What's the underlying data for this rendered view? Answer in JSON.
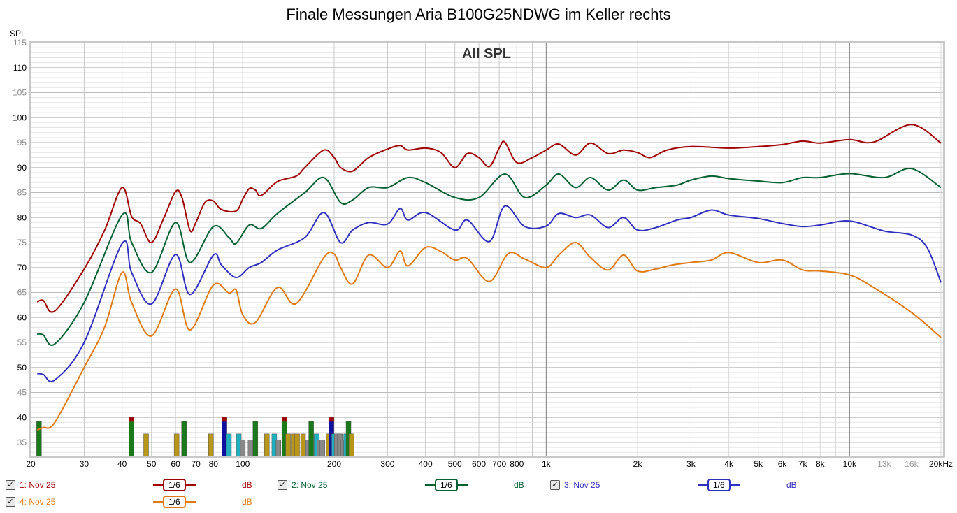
{
  "chart_data": {
    "type": "line",
    "title": "Finale Messungen Aria B100G25NDWG im Keller rechts",
    "subtitle": "All SPL",
    "ylabel": "SPL",
    "xlabel": "",
    "xscale": "log",
    "xlim": [
      20,
      20500
    ],
    "ylim": [
      32,
      115
    ],
    "yticks": [
      35,
      40,
      45,
      50,
      55,
      60,
      65,
      70,
      75,
      80,
      85,
      90,
      95,
      100,
      105,
      110,
      115
    ],
    "xticks": [
      {
        "v": 20,
        "l": "20"
      },
      {
        "v": 30,
        "l": "30"
      },
      {
        "v": 40,
        "l": "40"
      },
      {
        "v": 50,
        "l": "50"
      },
      {
        "v": 60,
        "l": "60"
      },
      {
        "v": 70,
        "l": "70"
      },
      {
        "v": 80,
        "l": "80"
      },
      {
        "v": 100,
        "l": "100"
      },
      {
        "v": 200,
        "l": "200"
      },
      {
        "v": 300,
        "l": "300"
      },
      {
        "v": 400,
        "l": "400"
      },
      {
        "v": 500,
        "l": "500"
      },
      {
        "v": 600,
        "l": "600"
      },
      {
        "v": 700,
        "l": "700"
      },
      {
        "v": 800,
        "l": "800"
      },
      {
        "v": 1000,
        "l": "1k"
      },
      {
        "v": 2000,
        "l": "2k"
      },
      {
        "v": 3000,
        "l": "3k"
      },
      {
        "v": 4000,
        "l": "4k"
      },
      {
        "v": 5000,
        "l": "5k"
      },
      {
        "v": 6000,
        "l": "6k"
      },
      {
        "v": 7000,
        "l": "7k"
      },
      {
        "v": 8000,
        "l": "8k"
      },
      {
        "v": 10000,
        "l": "10k"
      },
      {
        "v": 13000,
        "l": "13k",
        "minor": true
      },
      {
        "v": 16000,
        "l": "16k",
        "minor": true
      },
      {
        "v": 20000,
        "l": "20kHz"
      }
    ],
    "grid": true,
    "series": [
      {
        "name": "1: Nov 25",
        "color": "#a00000",
        "smoothing": "1/6",
        "unit": "dB",
        "x": [
          21,
          22,
          24,
          30,
          35,
          40,
          43,
          46,
          50,
          55,
          60,
          63,
          67,
          70,
          75,
          80,
          85,
          95,
          100,
          105,
          110,
          115,
          130,
          150,
          160,
          185,
          200,
          210,
          230,
          260,
          300,
          330,
          350,
          400,
          450,
          500,
          550,
          600,
          650,
          700,
          730,
          800,
          900,
          1000,
          1100,
          1250,
          1400,
          1600,
          1800,
          2000,
          2200,
          2500,
          3000,
          4000,
          5000,
          6000,
          7000,
          8000,
          10000,
          12000,
          16000,
          20000
        ],
        "y": [
          63.1,
          63.4,
          61.3,
          69.7,
          77.4,
          86,
          80.2,
          78.8,
          75,
          80,
          85.2,
          84,
          77.4,
          79,
          83,
          83.3,
          81.6,
          81.3,
          83.7,
          85.8,
          85.5,
          84.4,
          87.2,
          88.3,
          90,
          93.5,
          92,
          90,
          89.3,
          92,
          93.7,
          94.4,
          93.5,
          93.9,
          93,
          90,
          92.8,
          92,
          90.2,
          93.9,
          95.1,
          91,
          92,
          93.5,
          94.7,
          92.5,
          94.9,
          92.8,
          93.5,
          93,
          92,
          93.5,
          94.2,
          93.9,
          94.2,
          94.6,
          95.3,
          94.9,
          95.6,
          95.1,
          98.6,
          94.9
        ]
      },
      {
        "name": "2: Nov 25",
        "color": "#006030",
        "smoothing": "1/6",
        "unit": "dB",
        "x": [
          21,
          22,
          24,
          30,
          40,
          43,
          50,
          60,
          67,
          80,
          90,
          95,
          105,
          115,
          130,
          160,
          185,
          210,
          230,
          260,
          300,
          350,
          400,
          500,
          600,
          730,
          850,
          1000,
          1100,
          1250,
          1400,
          1600,
          1800,
          2000,
          2300,
          2700,
          3000,
          3500,
          4000,
          5000,
          6000,
          7000,
          8000,
          10000,
          13000,
          16000,
          20000
        ],
        "y": [
          56.7,
          56.5,
          54.7,
          63,
          80.5,
          75,
          69,
          79,
          71,
          78.2,
          76,
          74.8,
          78.5,
          77.8,
          80.8,
          85,
          88,
          83,
          83.5,
          86,
          86,
          88,
          87,
          84,
          84,
          88.7,
          84,
          86.5,
          88.7,
          86,
          88,
          85.5,
          87.5,
          85.5,
          86,
          86.5,
          87.5,
          88.3,
          87.8,
          87.3,
          87,
          88,
          88,
          88.8,
          88,
          89.8,
          86
        ]
      },
      {
        "name": "3: Nov 25",
        "color": "#3030c0",
        "smoothing": "1/6",
        "unit": "dB",
        "x": [
          21,
          22,
          24,
          30,
          40,
          43,
          50,
          60,
          67,
          80,
          85,
          95,
          105,
          115,
          130,
          160,
          185,
          210,
          230,
          260,
          300,
          330,
          350,
          400,
          500,
          550,
          650,
          730,
          850,
          1000,
          1100,
          1250,
          1400,
          1600,
          1800,
          2000,
          2300,
          2700,
          3000,
          3500,
          4000,
          5000,
          6000,
          7000,
          8000,
          10000,
          13000,
          16000,
          18000,
          20000
        ],
        "y": [
          48.8,
          48.6,
          47.5,
          55,
          74.8,
          69,
          62.7,
          72.6,
          64.6,
          72.5,
          70.5,
          68,
          70,
          71,
          73.5,
          76,
          81,
          75,
          77.5,
          79,
          78.7,
          81.8,
          79.5,
          81,
          77.5,
          79.5,
          75.2,
          82.3,
          78.2,
          78.3,
          80.8,
          80,
          80.5,
          78,
          80,
          77.5,
          78,
          79.5,
          80,
          81.5,
          80.5,
          79.8,
          78.8,
          78.2,
          78.5,
          79.3,
          77.3,
          76.5,
          74,
          67
        ]
      },
      {
        "name": "4: Nov 25",
        "color": "#e07a10",
        "smoothing": "1/6",
        "unit": "dB",
        "x": [
          21,
          22,
          24,
          30,
          35,
          40,
          43,
          50,
          60,
          67,
          80,
          90,
          95,
          100,
          110,
          130,
          150,
          185,
          200,
          210,
          230,
          260,
          300,
          330,
          350,
          400,
          450,
          500,
          550,
          650,
          750,
          850,
          1000,
          1100,
          1250,
          1400,
          1600,
          1800,
          2000,
          2300,
          2600,
          3000,
          3500,
          4000,
          5000,
          6000,
          7000,
          8000,
          10000,
          12000,
          16000,
          20000
        ],
        "y": [
          37.5,
          38,
          39,
          50,
          58,
          69,
          63,
          56.3,
          65.7,
          57.5,
          66.5,
          64.9,
          65.5,
          60.5,
          59,
          66,
          62.8,
          72,
          72.7,
          70,
          66.7,
          72.5,
          70,
          73.3,
          70.3,
          74,
          73.2,
          71.5,
          71.8,
          67.2,
          72.8,
          71.7,
          70,
          72.5,
          75,
          72,
          69.5,
          72.5,
          69.3,
          69.7,
          70.5,
          71,
          71.5,
          73,
          71,
          71.5,
          69.5,
          69.3,
          68.5,
          66,
          61,
          56
        ]
      }
    ],
    "bars": [
      {
        "f": 21.3,
        "top": 39.2,
        "c": "#1a7a1a"
      },
      {
        "f": 43,
        "top": 40,
        "c": "#1a7a1a",
        "cap": "#a00000"
      },
      {
        "f": 48,
        "top": 36.7,
        "c": "#b8961a"
      },
      {
        "f": 60.5,
        "top": 36.7,
        "c": "#b8961a"
      },
      {
        "f": 64,
        "top": 39.2,
        "c": "#1a7a1a"
      },
      {
        "f": 78.5,
        "top": 36.7,
        "c": "#b8961a"
      },
      {
        "f": 87,
        "top": 40,
        "c": "#1010a0",
        "cap": "#a00000"
      },
      {
        "f": 90,
        "top": 36.7,
        "c": "#20b0c0"
      },
      {
        "f": 97,
        "top": 36.7,
        "c": "#20b0c0"
      },
      {
        "f": 100,
        "top": 35.5,
        "c": "#888888"
      },
      {
        "f": 106,
        "top": 35.5,
        "c": "#888888"
      },
      {
        "f": 110,
        "top": 39.2,
        "c": "#1a7a1a"
      },
      {
        "f": 120,
        "top": 36.7,
        "c": "#b8961a"
      },
      {
        "f": 127,
        "top": 36.7,
        "c": "#20b0c0"
      },
      {
        "f": 131,
        "top": 35.5,
        "c": "#888888"
      },
      {
        "f": 137,
        "top": 40,
        "c": "#1a7a1a",
        "cap": "#a00000"
      },
      {
        "f": 141,
        "top": 36.7,
        "c": "#b8961a"
      },
      {
        "f": 147,
        "top": 36.7,
        "c": "#b8961a"
      },
      {
        "f": 151,
        "top": 36.7,
        "c": "#b8961a"
      },
      {
        "f": 158,
        "top": 36.7,
        "c": "#b8961a"
      },
      {
        "f": 164,
        "top": 35.5,
        "c": "#888888"
      },
      {
        "f": 168,
        "top": 39.2,
        "c": "#1a7a1a"
      },
      {
        "f": 175,
        "top": 36.7,
        "c": "#20b0c0"
      },
      {
        "f": 179,
        "top": 35.5,
        "c": "#888888"
      },
      {
        "f": 183,
        "top": 35.5,
        "c": "#888888"
      },
      {
        "f": 192,
        "top": 36.7,
        "c": "#b8961a"
      },
      {
        "f": 196,
        "top": 40,
        "c": "#1010a0",
        "cap": "#a00000"
      },
      {
        "f": 200,
        "top": 36.7,
        "c": "#20b0c0"
      },
      {
        "f": 204,
        "top": 36.7,
        "c": "#888888"
      },
      {
        "f": 209,
        "top": 36.7,
        "c": "#888888"
      },
      {
        "f": 214,
        "top": 35.5,
        "c": "#888888"
      },
      {
        "f": 219,
        "top": 36.7,
        "c": "#20b0c0"
      },
      {
        "f": 223,
        "top": 39.2,
        "c": "#1a7a1a"
      },
      {
        "f": 228,
        "top": 36.7,
        "c": "#b8961a"
      }
    ]
  },
  "legend": [
    {
      "label": "1: Nov 25",
      "smoothing": "1/6",
      "unit": "dB",
      "color": "#a00000",
      "checked": "✓"
    },
    {
      "label": "2: Nov 25",
      "smoothing": "1/6",
      "unit": "dB",
      "color": "#006030",
      "checked": "✓"
    },
    {
      "label": "3: Nov 25",
      "smoothing": "1/6",
      "unit": "dB",
      "color": "#3030c0",
      "checked": "✓"
    },
    {
      "label": "4: Nov 25",
      "smoothing": "1/6",
      "unit": "dB",
      "color": "#e07a10",
      "checked": "✓"
    }
  ]
}
